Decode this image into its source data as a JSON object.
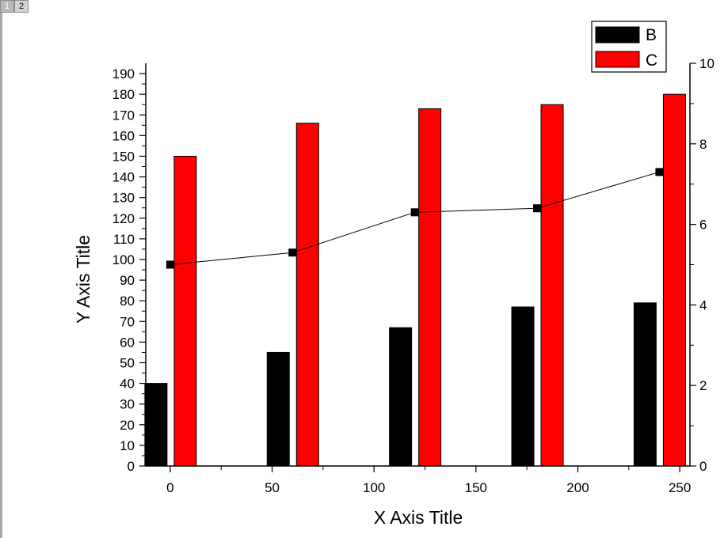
{
  "page_tabs": [
    {
      "label": "1",
      "active": true
    },
    {
      "label": "2",
      "active": false
    }
  ],
  "chart_data": {
    "type": "bar",
    "title": "",
    "xlabel": "X Axis Title",
    "ylabel": "Y Axis Title",
    "xlim": [
      -12,
      255
    ],
    "ylim": [
      0,
      195
    ],
    "y2lim": [
      0,
      10
    ],
    "x_ticks": [
      0,
      50,
      100,
      150,
      200,
      250
    ],
    "y_ticks": [
      0,
      10,
      20,
      30,
      40,
      50,
      60,
      70,
      80,
      90,
      100,
      110,
      120,
      130,
      140,
      150,
      160,
      170,
      180,
      190
    ],
    "y2_ticks": [
      0,
      2,
      4,
      6,
      8,
      10
    ],
    "x": [
      0,
      60,
      120,
      180,
      240
    ],
    "series": [
      {
        "name": "B",
        "type": "bar",
        "axis": "left",
        "color": "#000000",
        "values": [
          40,
          55,
          67,
          77,
          79
        ]
      },
      {
        "name": "C",
        "type": "bar",
        "axis": "left",
        "color": "#ff0000",
        "values": [
          150,
          166,
          173,
          175,
          180
        ]
      },
      {
        "type": "line",
        "axis": "right",
        "color": "#000000",
        "marker": "square",
        "values": [
          5.0,
          5.3,
          6.3,
          6.4,
          7.3
        ]
      }
    ],
    "legend": {
      "position": "top-right"
    },
    "grid": false
  }
}
